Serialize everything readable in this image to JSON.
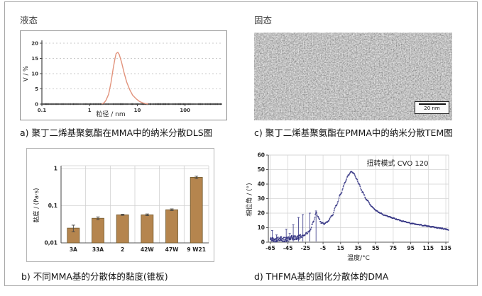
{
  "figure": {
    "panels": {
      "dls": {
        "state_label": "液态",
        "caption": "a) 聚丁二烯基聚氨酯在MMA中的纳米分散DLS图"
      },
      "tem": {
        "state_label": "固态",
        "caption": "c) 聚丁二烯基聚氨酯在PMMA中的纳米分散TEM图",
        "scale_bar": "20 nm"
      },
      "viscosity": {
        "caption": "b) 不同MMA基的分散体的黏度(锥板)"
      },
      "dma": {
        "caption": "d) THFMA基的固化分散体的DMA"
      }
    }
  },
  "chart_data": [
    {
      "type": "line",
      "panel": "a",
      "xlabel": "粒径 / nm",
      "ylabel": "V / %",
      "xscale": "log",
      "xlim": [
        0.1,
        600
      ],
      "ylim": [
        0,
        20
      ],
      "xticks": [
        0.1,
        1,
        10,
        100
      ],
      "xtick_labels": [
        "0.1",
        "1",
        "10",
        "100"
      ],
      "yticks": [
        0,
        5,
        10,
        15,
        20
      ],
      "grid": "dashed-horizontal",
      "line_color": "#e2937c",
      "baseline_color": "#3a3a3a",
      "points": [
        [
          1.8,
          0
        ],
        [
          2.0,
          0.4
        ],
        [
          2.2,
          1.2
        ],
        [
          2.5,
          3.2
        ],
        [
          2.8,
          7.0
        ],
        [
          3.1,
          11.5
        ],
        [
          3.4,
          15.0
        ],
        [
          3.6,
          16.6
        ],
        [
          3.9,
          17.0
        ],
        [
          4.2,
          16.2
        ],
        [
          4.7,
          13.6
        ],
        [
          5.3,
          10.2
        ],
        [
          6.0,
          7.2
        ],
        [
          7.0,
          4.6
        ],
        [
          8.0,
          2.9
        ],
        [
          9.5,
          1.7
        ],
        [
          11.0,
          0.9
        ],
        [
          13.0,
          0.4
        ],
        [
          15.0,
          0.15
        ],
        [
          17.0,
          0
        ]
      ]
    },
    {
      "type": "bar",
      "panel": "b",
      "ylabel": "黏度 / (Pa·s)",
      "yscale": "log",
      "ylim": [
        0.01,
        1.15
      ],
      "yticks": [
        1,
        0.1,
        0.01
      ],
      "ytick_labels": [
        "1",
        "0,1",
        "0,01"
      ],
      "grid": "both-light",
      "categories": [
        "3A",
        "33A",
        "2",
        "42W",
        "47W",
        "9 W21"
      ],
      "values": [
        0.025,
        0.046,
        0.057,
        0.057,
        0.078,
        0.58
      ],
      "errors": [
        0.005,
        0.004,
        0.002,
        0.003,
        0.004,
        0.04
      ],
      "bar_color": "#b5854e",
      "bar_edge": "#70592f"
    },
    {
      "type": "scatter",
      "panel": "d",
      "xlabel": "温度/°C",
      "ylabel": "相位角 / (°)",
      "annotation": "扭转模式 CVO 120",
      "xlim": [
        -67.4,
        138.2
      ],
      "ylim": [
        0,
        60
      ],
      "xticks": [
        -65,
        -45,
        -25,
        -5,
        15,
        35,
        55,
        75,
        95,
        115,
        135
      ],
      "yticks": [
        0,
        10,
        20,
        30,
        40,
        50,
        60
      ],
      "grid": "both-light",
      "dot_color": "#2d2d80",
      "anchors": [
        [
          -65,
          2
        ],
        [
          -60,
          1.5
        ],
        [
          -55,
          2.5
        ],
        [
          -50,
          1.8
        ],
        [
          -45,
          2
        ],
        [
          -40,
          3
        ],
        [
          -35,
          3
        ],
        [
          -30,
          4
        ],
        [
          -25,
          5.5
        ],
        [
          -20,
          8
        ],
        [
          -16,
          14
        ],
        [
          -13,
          20.5
        ],
        [
          -10,
          17
        ],
        [
          -7,
          13.5
        ],
        [
          -4,
          12.5
        ],
        [
          0,
          14
        ],
        [
          5,
          18
        ],
        [
          10,
          25
        ],
        [
          15,
          33
        ],
        [
          20,
          41
        ],
        [
          24,
          46.5
        ],
        [
          27,
          48.5
        ],
        [
          30,
          47.5
        ],
        [
          33,
          44
        ],
        [
          36,
          40
        ],
        [
          40,
          34.5
        ],
        [
          45,
          29
        ],
        [
          50,
          25
        ],
        [
          55,
          22
        ],
        [
          60,
          20
        ],
        [
          65,
          18.5
        ],
        [
          70,
          17.5
        ],
        [
          75,
          16.5
        ],
        [
          80,
          15.5
        ],
        [
          85,
          14.5
        ],
        [
          90,
          14
        ],
        [
          95,
          13
        ],
        [
          100,
          12.5
        ],
        [
          105,
          12
        ],
        [
          110,
          11.5
        ],
        [
          115,
          11
        ],
        [
          120,
          10.5
        ],
        [
          125,
          10
        ],
        [
          130,
          9.5
        ],
        [
          135,
          9
        ],
        [
          138,
          8.5
        ]
      ],
      "spikes": [
        [
          -63,
          8
        ],
        [
          -58,
          5
        ],
        [
          -53,
          4
        ],
        [
          -47,
          9
        ],
        [
          -43,
          6
        ],
        [
          -39,
          12
        ],
        [
          -33,
          17
        ],
        [
          -28,
          19
        ],
        [
          -20,
          20
        ],
        [
          -13,
          21.5
        ]
      ],
      "noise_regions": [
        [
          -70,
          -30,
          1.6
        ],
        [
          -30,
          -5,
          0.8
        ],
        [
          -5,
          140,
          0.35
        ]
      ]
    }
  ]
}
